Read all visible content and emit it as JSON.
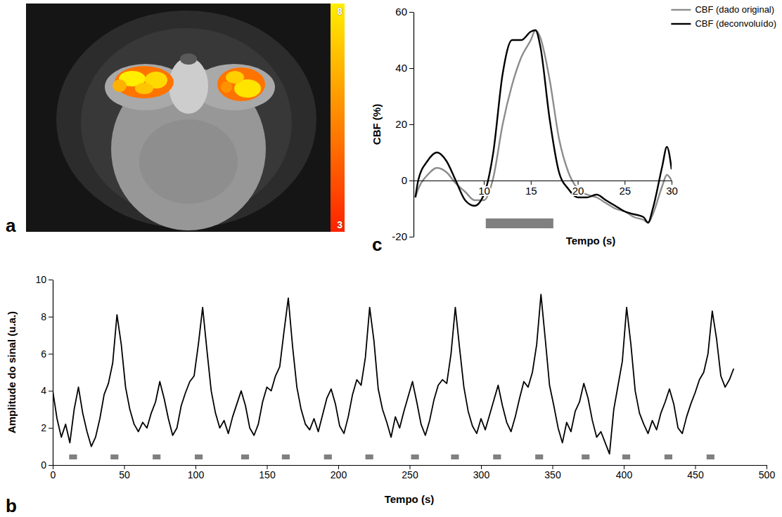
{
  "chart_data": [
    {
      "type": "image",
      "panel": "a",
      "colorbar_range": [
        3,
        8
      ],
      "colorbar_ticks": [
        3,
        8
      ]
    },
    {
      "type": "line",
      "panel": "b",
      "x_label": "Tempo (s)",
      "y_label": "Amplitude do sinal (u.a.)",
      "xlim": [
        0,
        500
      ],
      "xticks": [
        0,
        50,
        100,
        150,
        200,
        250,
        300,
        350,
        400,
        450,
        500
      ],
      "ylim": [
        0,
        10
      ],
      "yticks": [
        0,
        2,
        4,
        6,
        8,
        10
      ],
      "x": [
        0,
        3,
        6,
        9,
        12,
        15,
        18,
        21,
        24,
        27,
        30,
        33,
        36,
        39,
        42,
        45,
        48,
        51,
        54,
        57,
        60,
        63,
        66,
        69,
        72,
        75,
        78,
        81,
        84,
        87,
        90,
        93,
        96,
        99,
        102,
        105,
        108,
        111,
        114,
        117,
        120,
        123,
        126,
        129,
        132,
        135,
        138,
        141,
        144,
        147,
        150,
        153,
        156,
        159,
        162,
        165,
        168,
        171,
        174,
        177,
        180,
        183,
        186,
        189,
        192,
        195,
        198,
        201,
        204,
        207,
        210,
        213,
        216,
        219,
        222,
        225,
        228,
        231,
        234,
        237,
        240,
        243,
        246,
        249,
        252,
        255,
        258,
        261,
        264,
        267,
        270,
        273,
        276,
        279,
        282,
        285,
        288,
        291,
        294,
        297,
        300,
        303,
        306,
        309,
        312,
        315,
        318,
        321,
        324,
        327,
        330,
        333,
        336,
        339,
        342,
        345,
        348,
        351,
        354,
        357,
        360,
        363,
        366,
        369,
        372,
        375,
        378,
        381,
        384,
        387,
        390,
        393,
        396,
        399,
        402,
        405,
        408,
        411,
        414,
        417,
        420,
        423,
        426,
        429,
        432,
        435,
        438,
        441,
        444,
        447,
        450,
        453,
        456,
        459,
        462,
        465,
        468,
        471,
        474,
        477
      ],
      "series": [
        {
          "color": "#000000",
          "values": [
            4.0,
            2.5,
            1.5,
            2.2,
            1.2,
            3.0,
            4.2,
            2.8,
            1.8,
            1.0,
            1.5,
            2.5,
            3.8,
            4.4,
            5.5,
            8.1,
            6.5,
            4.2,
            3.0,
            2.2,
            1.8,
            2.3,
            2.0,
            2.8,
            3.4,
            4.5,
            3.6,
            2.5,
            1.6,
            2.0,
            3.2,
            3.9,
            4.5,
            4.8,
            6.5,
            8.5,
            6.2,
            4.0,
            2.8,
            2.0,
            2.4,
            1.7,
            2.6,
            3.3,
            4.0,
            3.2,
            2.0,
            1.6,
            2.2,
            3.4,
            4.2,
            4.0,
            4.8,
            5.3,
            7.2,
            9.0,
            6.4,
            4.2,
            3.0,
            2.2,
            1.9,
            2.5,
            1.8,
            2.7,
            3.6,
            4.1,
            3.3,
            2.1,
            1.7,
            2.6,
            3.8,
            4.6,
            4.3,
            5.8,
            8.5,
            6.7,
            4.1,
            3.0,
            2.3,
            1.5,
            2.6,
            2.0,
            2.9,
            3.7,
            4.5,
            3.4,
            2.2,
            1.6,
            2.4,
            3.5,
            4.3,
            4.6,
            4.4,
            6.0,
            8.5,
            6.3,
            4.2,
            2.9,
            2.1,
            1.7,
            2.5,
            1.9,
            2.7,
            3.5,
            4.3,
            3.2,
            2.3,
            1.8,
            2.6,
            3.6,
            4.5,
            4.2,
            5.0,
            6.5,
            9.2,
            6.8,
            4.3,
            3.2,
            2.0,
            1.2,
            2.3,
            1.8,
            2.9,
            3.4,
            4.4,
            3.6,
            2.4,
            1.5,
            1.8,
            1.2,
            0.6,
            3.0,
            4.3,
            5.6,
            8.5,
            6.5,
            4.0,
            2.8,
            2.2,
            1.7,
            2.4,
            1.9,
            2.8,
            3.4,
            4.1,
            3.3,
            2.0,
            1.7,
            2.6,
            3.3,
            3.9,
            4.6,
            5.0,
            6.0,
            8.3,
            6.8,
            4.8,
            4.2,
            4.6,
            5.2
          ]
        }
      ],
      "stimulus": [
        [
          11.5,
          17
        ],
        [
          40.5,
          46
        ],
        [
          70,
          75.5
        ],
        [
          99.5,
          105
        ],
        [
          132,
          137.5
        ],
        [
          160.5,
          166
        ],
        [
          190,
          195.5
        ],
        [
          219,
          224.5
        ],
        [
          251,
          256.5
        ],
        [
          279,
          284.5
        ],
        [
          308.5,
          314
        ],
        [
          338,
          343.5
        ],
        [
          370.5,
          376
        ],
        [
          399,
          404.5
        ],
        [
          428.5,
          434
        ],
        [
          458,
          463.5
        ]
      ]
    },
    {
      "type": "line",
      "panel": "c",
      "x_label": "Tempo (s)",
      "y_label": "CBF (%)",
      "xlim": [
        2.5,
        30
      ],
      "xticks": [
        10,
        15,
        20,
        25,
        30
      ],
      "ylim": [
        -20,
        60
      ],
      "yticks": [
        -20,
        0,
        20,
        40,
        60
      ],
      "legend": "top-right",
      "x": [
        2.7,
        3,
        4,
        5,
        6,
        7,
        8,
        9,
        10,
        11,
        12,
        13,
        14,
        15,
        15.5,
        16,
        17,
        18,
        19,
        20,
        21,
        22,
        23,
        24,
        25,
        26,
        27,
        27.5,
        28,
        29,
        29.5,
        30
      ],
      "series": [
        {
          "name": "CBF (dado original)",
          "color": "#8c8c8c",
          "values": [
            -6,
            -3,
            2,
            4.5,
            3,
            -1,
            -4,
            -7,
            -7,
            1,
            20,
            34,
            44,
            50,
            53.5,
            51,
            36,
            15,
            3,
            -3,
            -5,
            -6,
            -8,
            -10,
            -11,
            -13,
            -14,
            -15,
            -12,
            -2,
            2,
            0
          ]
        },
        {
          "name": "CBF (deconvoluído)",
          "color": "#000000",
          "values": [
            -6,
            0,
            7,
            10,
            7,
            0,
            -7,
            -9,
            -5,
            10,
            38,
            50,
            50,
            53,
            53.5,
            48,
            22,
            3,
            -3,
            -6,
            -6,
            -5,
            -7,
            -9,
            -11,
            -12,
            -13,
            -15,
            -10,
            5,
            12,
            4
          ]
        }
      ],
      "stimulus": [
        10.2,
        17.4
      ]
    }
  ]
}
